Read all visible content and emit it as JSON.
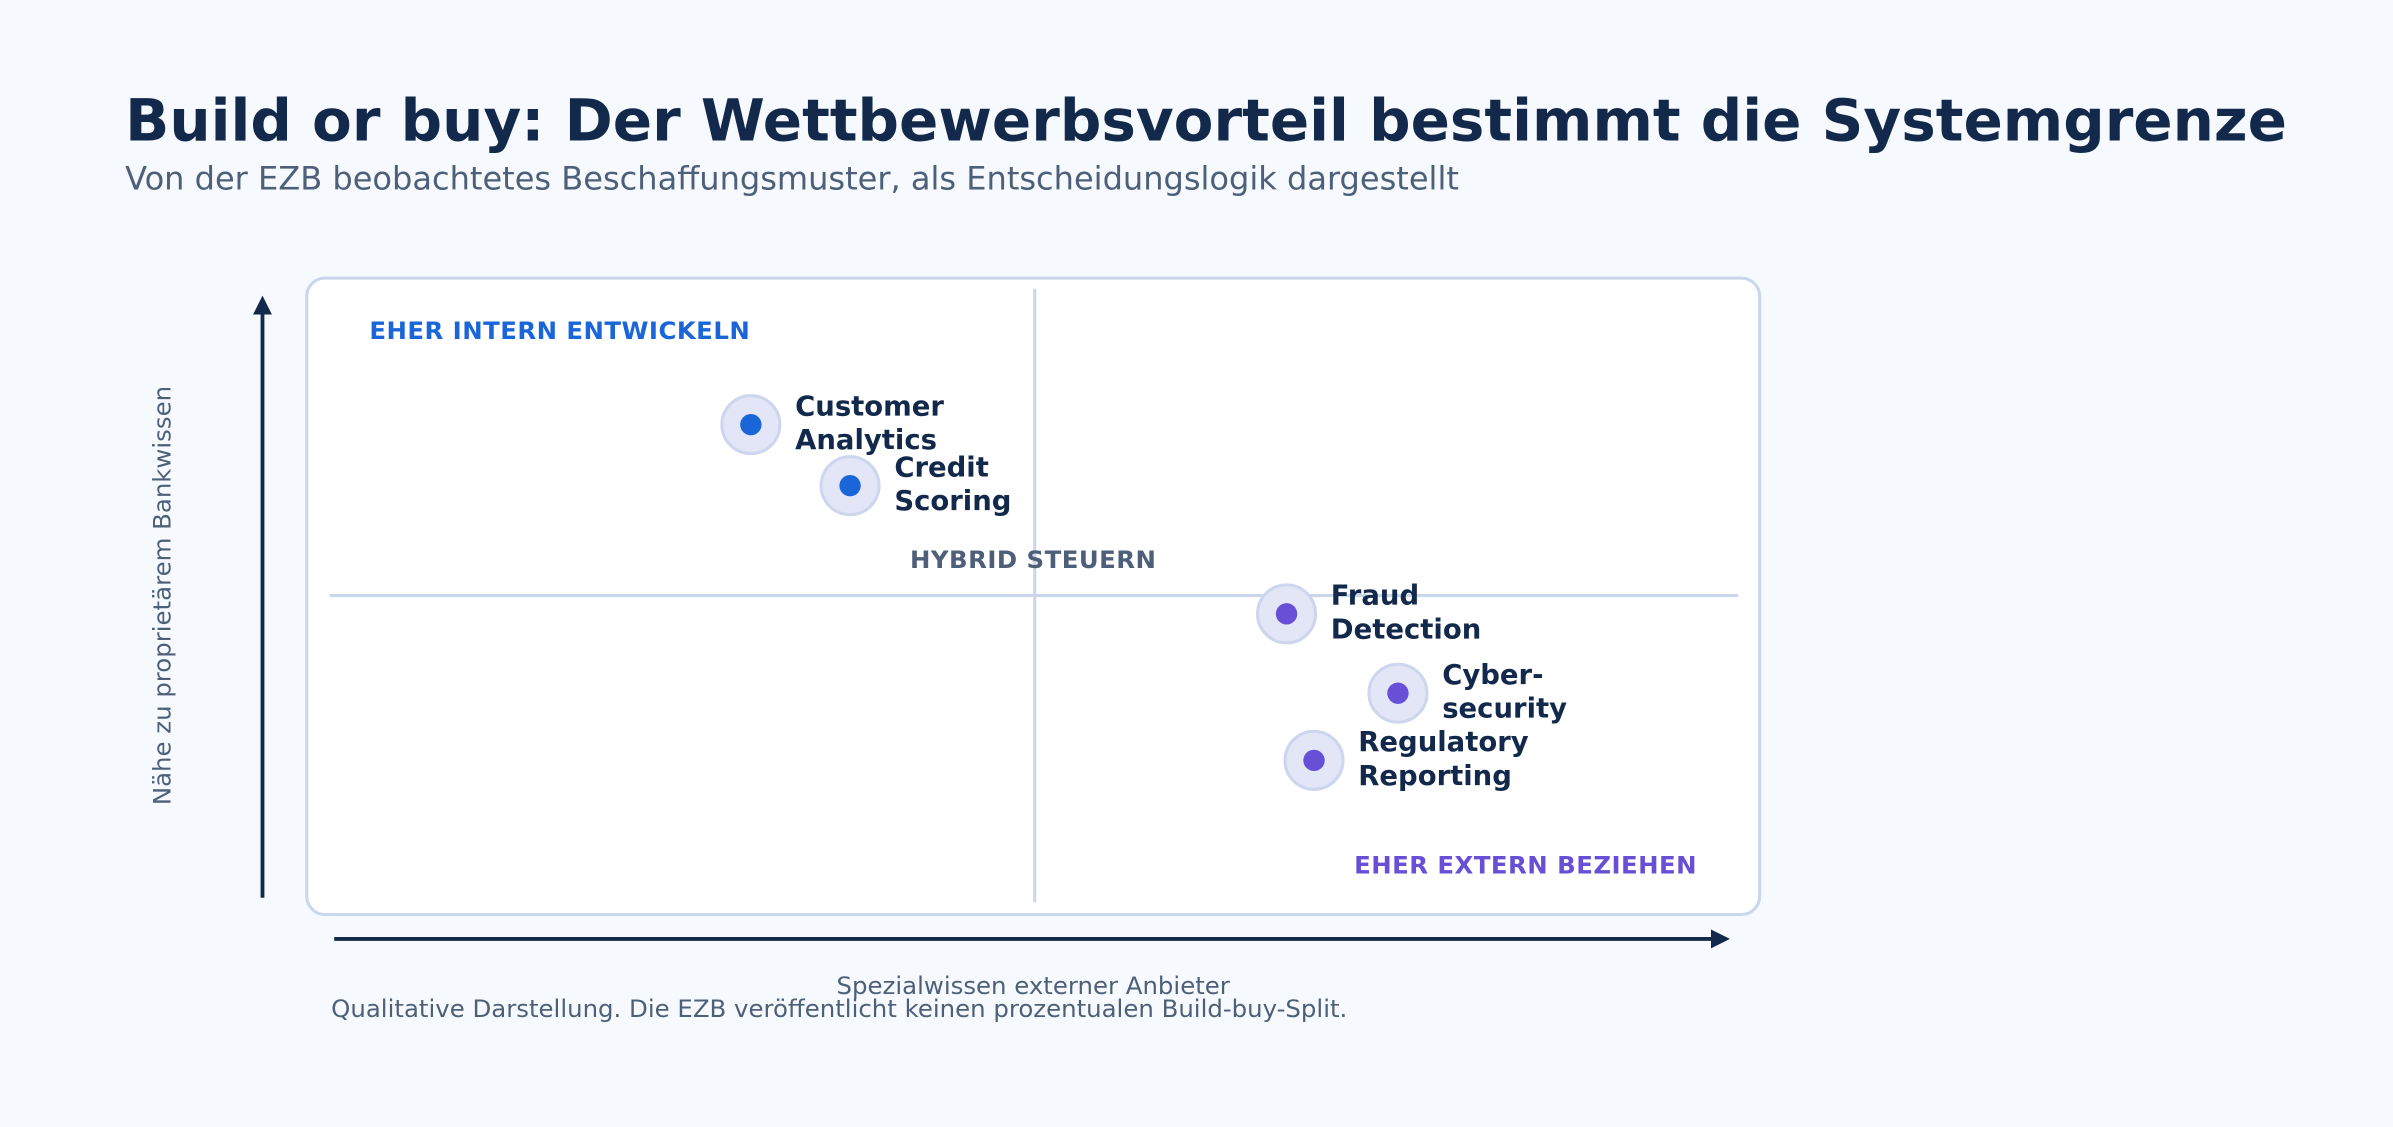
{
  "header": {
    "title": "Build or buy: Der Wettbewerbsvorteil bestimmt die Systemgrenze",
    "subtitle": "Von der EZB beobachtetes Beschaffungsmuster, als Entscheidungslogik dargestellt"
  },
  "axes": {
    "y_label": "Nähe zu proprietärem Bankwissen",
    "x_label": "Spezialwissen externer Anbieter"
  },
  "quadrants": {
    "top_left": "EHER INTERN ENTWICKELN",
    "center": "HYBRID STEUERN",
    "bottom_right": "EHER EXTERN BEZIEHEN"
  },
  "items": [
    {
      "label": [
        "Customer",
        "Analytics"
      ],
      "color": "#1a66d9"
    },
    {
      "label": [
        "Credit",
        "Scoring"
      ],
      "color": "#1a66d9"
    },
    {
      "label": [
        "Fraud",
        "Detection"
      ],
      "color": "#6750d6"
    },
    {
      "label": [
        "Cyber-",
        "security"
      ],
      "color": "#6750d6"
    },
    {
      "label": [
        "Regulatory",
        "Reporting"
      ],
      "color": "#6750d6"
    }
  ],
  "footnote": "Qualitative Darstellung. Die EZB veröffentlicht keinen prozentualen Build-buy-Split."
}
